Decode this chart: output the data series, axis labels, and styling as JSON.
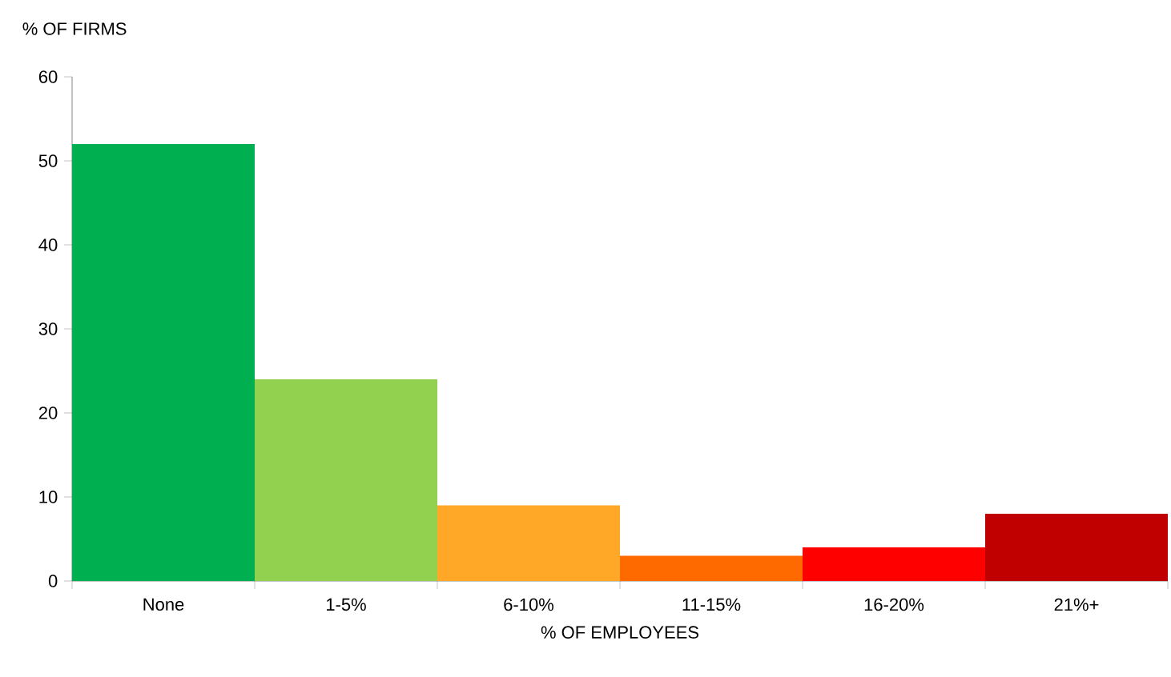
{
  "chart_data": {
    "type": "bar",
    "ylabel": "% OF FIRMS",
    "xlabel": "% OF EMPLOYEES",
    "categories": [
      "None",
      "1-5%",
      "6-10%",
      "11-15%",
      "16-20%",
      "21%+"
    ],
    "values": [
      52,
      24,
      9,
      3,
      4,
      8
    ],
    "colors": [
      "#00b050",
      "#92d050",
      "#ffa726",
      "#ff6a00",
      "#ff0000",
      "#c00000"
    ],
    "ylim": [
      0,
      60
    ],
    "yticks": [
      0,
      10,
      20,
      30,
      40,
      50,
      60
    ],
    "grid": false
  }
}
